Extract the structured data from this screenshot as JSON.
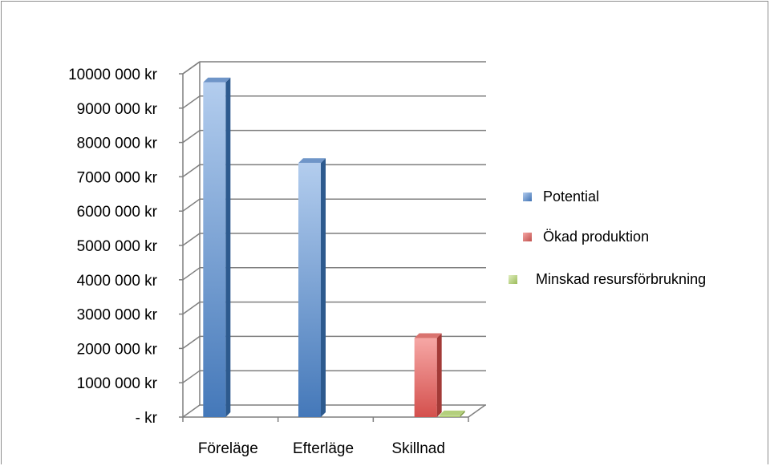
{
  "chart_data": {
    "type": "bar",
    "style": "3d-clustered-column",
    "categories": [
      "Föreläge",
      "Efterläge",
      "Skillnad"
    ],
    "series": [
      {
        "name": "Potential",
        "values": [
          9750000,
          7400000,
          0
        ],
        "color": "#4f81bd"
      },
      {
        "name": "Ökad produktion",
        "values": [
          0,
          0,
          2300000
        ],
        "color": "#c0504d"
      },
      {
        "name": "Minskad resursförbrukning",
        "values": [
          0,
          0,
          50000
        ],
        "color": "#9bbb59"
      }
    ],
    "ylim": [
      0,
      10000000
    ],
    "yticks": [
      0,
      1000000,
      2000000,
      3000000,
      4000000,
      5000000,
      6000000,
      7000000,
      8000000,
      9000000,
      10000000
    ],
    "ytick_labels": [
      "-  kr",
      "1000 000 kr",
      "2000 000 kr",
      "3000 000 kr",
      "4000 000 kr",
      "5000 000 kr",
      "6000 000 kr",
      "7000 000 kr",
      "8000 000 kr",
      "9000 000 kr",
      "10000 000 kr"
    ],
    "grid": true,
    "legend_position": "right",
    "title": "",
    "xlabel": "",
    "ylabel": ""
  }
}
